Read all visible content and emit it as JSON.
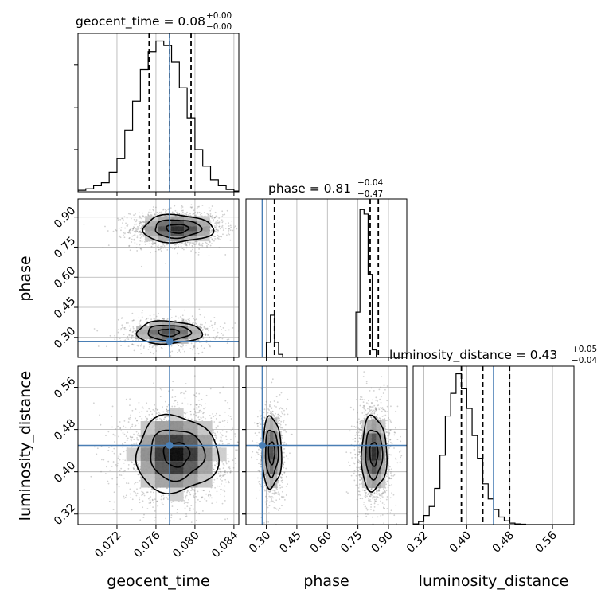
{
  "chart_data": {
    "type": "corner",
    "parameters": [
      {
        "name": "geocent_time",
        "label": "geocent_time",
        "range": [
          0.068,
          0.0845
        ],
        "ticks": [
          "0.072",
          "0.076",
          "0.080",
          "0.084"
        ],
        "tick_values": [
          0.072,
          0.076,
          0.08,
          0.084
        ],
        "truth": 0.0774,
        "median": 0.0774,
        "q16": 0.0753,
        "q84": 0.0796
      },
      {
        "name": "phase",
        "label": "phase",
        "range": [
          0.2,
          0.99
        ],
        "ticks": [
          "0.30",
          "0.45",
          "0.60",
          "0.75",
          "0.90"
        ],
        "tick_values": [
          0.3,
          0.45,
          0.6,
          0.75,
          0.9
        ],
        "truth": 0.28,
        "median": 0.81,
        "q16": 0.34,
        "q84": 0.85
      },
      {
        "name": "luminosity_distance",
        "label": "luminosity_distance",
        "range": [
          0.3,
          0.6
        ],
        "ticks": [
          "0.32",
          "0.40",
          "0.48",
          "0.56"
        ],
        "tick_values": [
          0.32,
          0.4,
          0.48,
          0.56
        ],
        "truth": 0.45,
        "median": 0.43,
        "q16": 0.39,
        "q84": 0.48
      }
    ],
    "titles": {
      "geocent_time": {
        "lhs": "geocent_time = 0.08",
        "plus": "+0.00",
        "minus": "−0.00"
      },
      "phase": {
        "lhs": "phase = 0.81",
        "plus": "+0.04",
        "minus": "−0.47"
      },
      "luminosity_distance": {
        "lhs": "luminosity_distance = 0.43",
        "plus": "+0.05",
        "minus": "−0.04"
      }
    },
    "histograms": {
      "geocent_time": {
        "bin_start": 0.068,
        "bin_width": 0.0008,
        "counts": [
          0.01,
          0.02,
          0.04,
          0.06,
          0.13,
          0.22,
          0.41,
          0.6,
          0.81,
          0.93,
          1.0,
          0.97,
          0.86,
          0.69,
          0.49,
          0.28,
          0.17,
          0.08,
          0.04,
          0.015,
          0.005
        ]
      },
      "phase": {
        "bin_start": 0.2,
        "bin_width": 0.02,
        "counts": [
          0,
          0,
          0,
          0,
          0,
          0.1,
          0.28,
          0.1,
          0.02,
          0,
          0,
          0,
          0,
          0,
          0,
          0,
          0,
          0,
          0,
          0,
          0,
          0,
          0,
          0,
          0,
          0,
          0,
          0.3,
          0.98,
          0.95,
          0.55,
          0.05,
          0,
          0,
          0,
          0,
          0,
          0,
          0,
          0
        ]
      },
      "luminosity_distance": {
        "bin_start": 0.3,
        "bin_width": 0.01,
        "counts": [
          0.005,
          0.02,
          0.06,
          0.12,
          0.24,
          0.46,
          0.72,
          0.87,
          1.0,
          0.9,
          0.77,
          0.59,
          0.44,
          0.27,
          0.17,
          0.1,
          0.05,
          0.025,
          0.01,
          0.005,
          0.003,
          0,
          0,
          0,
          0,
          0,
          0,
          0,
          0,
          0
        ]
      }
    },
    "hist_ymax": 1.05,
    "blobs": [
      {
        "x": "geocent_time",
        "y": "phase",
        "clusters": [
          {
            "cx": 0.0782,
            "cy": 0.842,
            "sx": 0.0019,
            "sy": 0.036,
            "w": 0.66
          },
          {
            "cx": 0.0773,
            "cy": 0.324,
            "sx": 0.0019,
            "sy": 0.032,
            "w": 0.34
          }
        ]
      },
      {
        "x": "geocent_time",
        "y": "luminosity_distance",
        "clusters": [
          {
            "cx": 0.0781,
            "cy": 0.433,
            "sx": 0.0021,
            "sy": 0.036,
            "w": 1.0
          }
        ]
      },
      {
        "x": "phase",
        "y": "luminosity_distance",
        "clusters": [
          {
            "cx": 0.326,
            "cy": 0.436,
            "sx": 0.027,
            "sy": 0.038,
            "w": 0.34
          },
          {
            "cx": 0.828,
            "cy": 0.434,
            "sx": 0.033,
            "sy": 0.037,
            "w": 0.66
          }
        ]
      }
    ],
    "colors": {
      "truth": "#4a7fb5",
      "line": "#000000",
      "grid": "#b0b0b0",
      "scatter": "#7a7a7a"
    },
    "grid": true
  }
}
